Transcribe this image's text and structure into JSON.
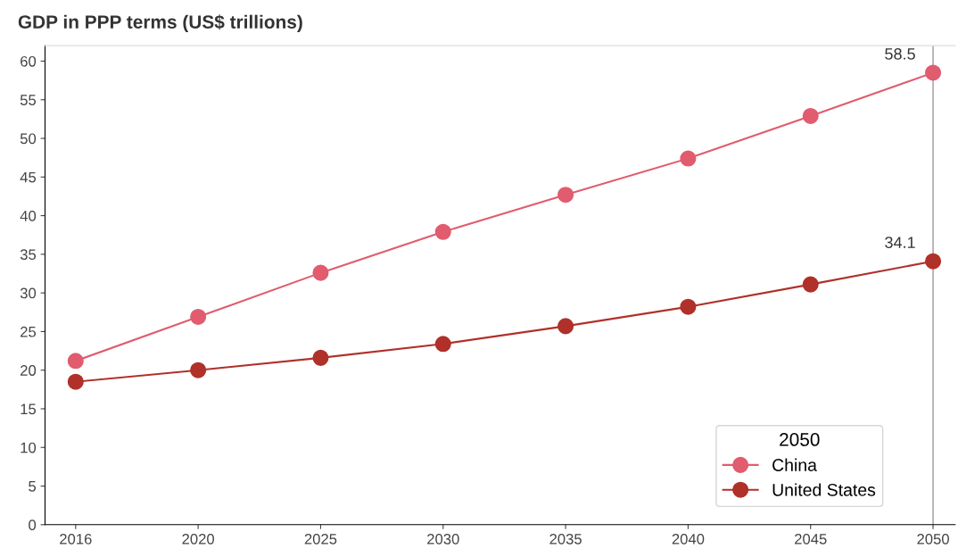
{
  "chart_data": {
    "type": "line",
    "title": "GDP in PPP terms (US$ trillions)",
    "categories": [
      "2016",
      "2020",
      "2025",
      "2030",
      "2035",
      "2040",
      "2045",
      "2050"
    ],
    "series": [
      {
        "name": "China",
        "color": "#e05c6e",
        "values": [
          21.2,
          26.9,
          32.6,
          37.9,
          42.7,
          47.4,
          52.9,
          58.5
        ],
        "value_labels": [
          null,
          null,
          null,
          null,
          null,
          null,
          null,
          "58.5"
        ]
      },
      {
        "name": "United States",
        "color": "#b0302a",
        "values": [
          18.5,
          20.0,
          21.6,
          23.4,
          25.7,
          28.2,
          31.1,
          34.1
        ],
        "value_labels": [
          null,
          null,
          null,
          null,
          null,
          null,
          null,
          "34.1"
        ]
      }
    ],
    "ylim": [
      0,
      62
    ],
    "yticks": [
      0,
      5,
      10,
      15,
      20,
      25,
      30,
      35,
      40,
      45,
      50,
      55,
      60
    ],
    "ref_lines": [
      {
        "axis": "x",
        "value": "2050",
        "label": null,
        "color": "#aaaaaa"
      }
    ],
    "legend": "bottom right",
    "legend_title": "2050",
    "marker": "circle",
    "line_style": "solid",
    "grid": false
  }
}
